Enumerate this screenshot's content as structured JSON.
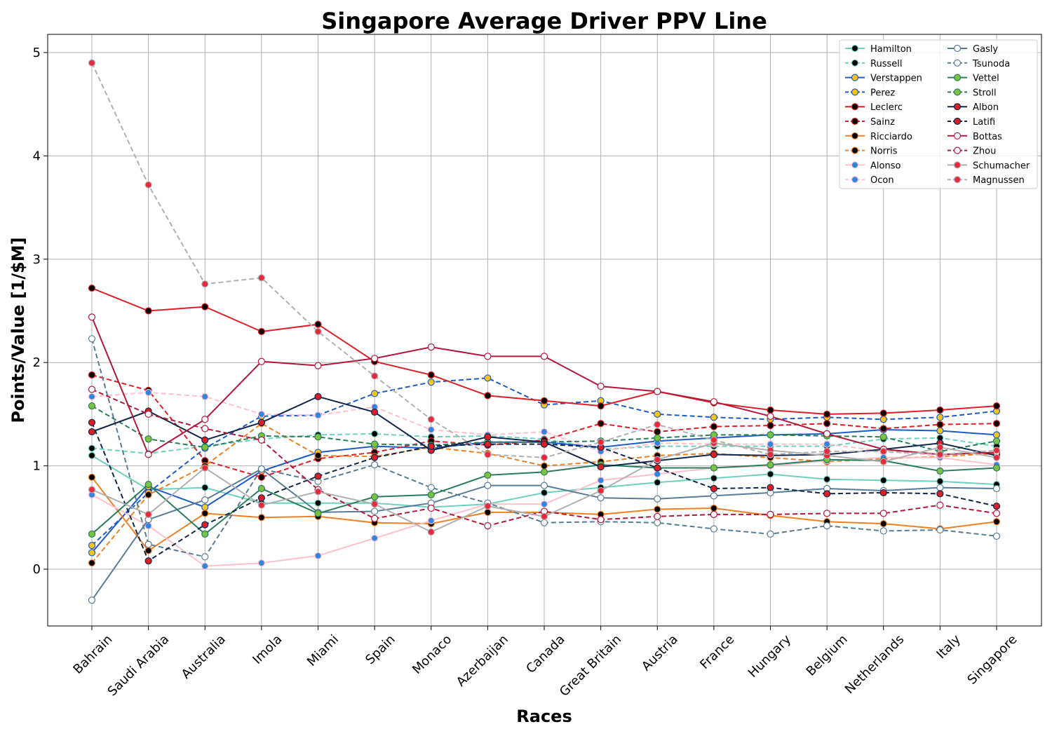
{
  "chart_data": {
    "type": "line",
    "title": "Singapore Average Driver PPV Line",
    "xlabel": "Races",
    "ylabel": "Points/Value [1/$M]",
    "x": [
      "Bahrain",
      "Saudi Arabia",
      "Australia",
      "Imola",
      "Miami",
      "Spain",
      "Monaco",
      "Azerbaijan",
      "Canada",
      "Great Britain",
      "Austria",
      "France",
      "Hungary",
      "Belgium",
      "Netherlands",
      "Italy",
      "Singapore"
    ],
    "ylim": [
      -0.55,
      5.17
    ],
    "yticks": [
      0,
      1,
      2,
      3,
      4,
      5
    ],
    "grid": true,
    "legend_position": "top-right",
    "series": [
      {
        "name": "Hamilton",
        "color": "#6fd0be",
        "dash": false,
        "marker": "#000000",
        "values": [
          1.1,
          0.77,
          0.79,
          0.64,
          0.64,
          0.64,
          0.6,
          0.63,
          0.74,
          0.79,
          0.84,
          0.88,
          0.92,
          0.87,
          0.86,
          0.85,
          0.82
        ]
      },
      {
        "name": "Russell",
        "color": "#6fd0be",
        "dash": true,
        "marker": "#000000",
        "values": [
          1.17,
          1.12,
          1.19,
          1.26,
          1.3,
          1.31,
          1.28,
          1.29,
          1.26,
          1.16,
          1.19,
          1.19,
          1.19,
          1.19,
          1.26,
          1.27,
          1.19
        ]
      },
      {
        "name": "Verstappen",
        "color": "#1e5bc6",
        "dash": false,
        "marker": "#f5c518",
        "values": [
          0.16,
          0.8,
          0.6,
          0.95,
          1.13,
          1.19,
          1.17,
          1.23,
          1.23,
          1.18,
          1.24,
          1.27,
          1.3,
          1.31,
          1.35,
          1.34,
          1.3
        ]
      },
      {
        "name": "Perez",
        "color": "#1e5bc6",
        "dash": true,
        "marker": "#f5c518",
        "values": [
          0.23,
          0.74,
          1.17,
          1.48,
          1.49,
          1.7,
          1.81,
          1.85,
          1.59,
          1.63,
          1.5,
          1.47,
          1.45,
          1.47,
          1.45,
          1.47,
          1.53
        ]
      },
      {
        "name": "Leclerc",
        "color": "#dc1f26",
        "dash": false,
        "marker": "#000000",
        "values": [
          2.72,
          2.5,
          2.54,
          2.3,
          2.37,
          2.01,
          1.88,
          1.68,
          1.63,
          1.58,
          1.72,
          1.61,
          1.54,
          1.5,
          1.51,
          1.54,
          1.58
        ]
      },
      {
        "name": "Sainz",
        "color": "#dc1f26",
        "dash": true,
        "marker": "#000000",
        "values": [
          1.88,
          1.73,
          1.05,
          0.89,
          1.07,
          1.13,
          1.24,
          1.2,
          1.25,
          1.41,
          1.33,
          1.38,
          1.39,
          1.41,
          1.36,
          1.4,
          1.41
        ]
      },
      {
        "name": "Ricciardo",
        "color": "#f07f22",
        "dash": false,
        "marker": "#000000",
        "values": [
          0.89,
          0.18,
          0.54,
          0.5,
          0.51,
          0.45,
          0.44,
          0.55,
          0.55,
          0.53,
          0.58,
          0.59,
          0.52,
          0.46,
          0.44,
          0.39,
          0.46
        ]
      },
      {
        "name": "Norris",
        "color": "#f07f22",
        "dash": true,
        "marker": "#000000",
        "values": [
          0.06,
          0.72,
          1.0,
          1.41,
          1.1,
          1.09,
          1.18,
          1.12,
          1.0,
          1.04,
          1.1,
          1.12,
          1.08,
          1.04,
          1.07,
          1.09,
          1.12
        ]
      },
      {
        "name": "Alonso",
        "color": "#ffc0cb",
        "dash": false,
        "marker": "#2e86de",
        "values": [
          0.72,
          0.42,
          0.03,
          0.06,
          0.13,
          0.3,
          0.47,
          0.63,
          0.63,
          0.86,
          0.92,
          0.98,
          1.0,
          1.05,
          1.08,
          1.08,
          1.01
        ]
      },
      {
        "name": "Ocon",
        "color": "#ffc0cb",
        "dash": true,
        "marker": "#2e86de",
        "values": [
          1.67,
          1.71,
          1.67,
          1.5,
          1.49,
          1.57,
          1.35,
          1.3,
          1.33,
          1.14,
          1.22,
          1.21,
          1.21,
          1.21,
          1.14,
          1.1,
          1.15
        ]
      },
      {
        "name": "Gasly",
        "color": "#577b95",
        "dash": false,
        "marker": "#ffffff",
        "values": [
          -0.3,
          0.48,
          0.67,
          0.97,
          0.55,
          0.56,
          0.64,
          0.81,
          0.81,
          0.69,
          0.68,
          0.71,
          0.74,
          0.78,
          0.76,
          0.79,
          0.78
        ]
      },
      {
        "name": "Tsunoda",
        "color": "#577b95",
        "dash": true,
        "marker": "#ffffff",
        "values": [
          2.23,
          0.24,
          0.12,
          0.97,
          0.85,
          1.01,
          0.79,
          0.64,
          0.45,
          0.46,
          0.45,
          0.39,
          0.34,
          0.42,
          0.37,
          0.38,
          0.32
        ]
      },
      {
        "name": "Vettel",
        "color": "#2a7d5b",
        "dash": false,
        "marker": "#7cc242",
        "values": [
          0.34,
          0.82,
          0.34,
          0.78,
          0.54,
          0.7,
          0.72,
          0.91,
          0.94,
          1.01,
          0.98,
          0.98,
          1.01,
          1.06,
          1.05,
          0.95,
          0.98
        ]
      },
      {
        "name": "Stroll",
        "color": "#2a7d5b",
        "dash": true,
        "marker": "#7cc242",
        "values": [
          1.58,
          1.26,
          1.18,
          1.29,
          1.28,
          1.21,
          1.2,
          1.23,
          1.23,
          1.24,
          1.27,
          1.3,
          1.3,
          1.29,
          1.28,
          1.14,
          1.24
        ]
      },
      {
        "name": "Albon",
        "color": "#12264a",
        "dash": false,
        "marker": "#dc1f26",
        "values": [
          1.33,
          1.53,
          1.25,
          1.42,
          1.67,
          1.52,
          1.15,
          1.28,
          1.23,
          0.99,
          1.05,
          1.11,
          1.1,
          1.11,
          1.16,
          1.22,
          1.1
        ]
      },
      {
        "name": "Latifi",
        "color": "#12264a",
        "dash": true,
        "marker": "#dc1f26",
        "values": [
          1.42,
          0.08,
          0.43,
          0.69,
          0.9,
          1.08,
          1.19,
          1.21,
          1.21,
          1.18,
          0.98,
          0.78,
          0.79,
          0.73,
          0.74,
          0.73,
          0.61
        ]
      },
      {
        "name": "Bottas",
        "color": "#b0183a",
        "dash": false,
        "marker": "#ffffff",
        "values": [
          2.44,
          1.11,
          1.45,
          2.01,
          1.97,
          2.04,
          2.15,
          2.06,
          2.06,
          1.77,
          1.72,
          1.62,
          1.48,
          1.31,
          1.16,
          1.11,
          1.13
        ]
      },
      {
        "name": "Zhou",
        "color": "#b0183a",
        "dash": true,
        "marker": "#ffffff",
        "values": [
          1.74,
          1.5,
          1.36,
          1.25,
          0.77,
          0.49,
          0.59,
          0.42,
          0.56,
          0.48,
          0.51,
          0.53,
          0.53,
          0.54,
          0.54,
          0.62,
          0.54
        ]
      },
      {
        "name": "Schumacher",
        "color": "#b0b0b0",
        "dash": false,
        "marker": "#e8293d",
        "values": [
          0.77,
          0.53,
          0.98,
          0.62,
          0.75,
          0.63,
          0.36,
          0.61,
          0.51,
          0.76,
          1.06,
          1.22,
          1.15,
          1.1,
          1.04,
          1.18,
          1.08
        ]
      },
      {
        "name": "Magnussen",
        "color": "#b0b0b0",
        "dash": true,
        "marker": "#e8293d",
        "values": [
          4.9,
          3.72,
          2.76,
          2.82,
          2.3,
          1.87,
          1.45,
          1.11,
          1.08,
          1.23,
          1.4,
          1.25,
          1.11,
          1.14,
          1.14,
          1.11,
          1.15
        ]
      }
    ]
  }
}
